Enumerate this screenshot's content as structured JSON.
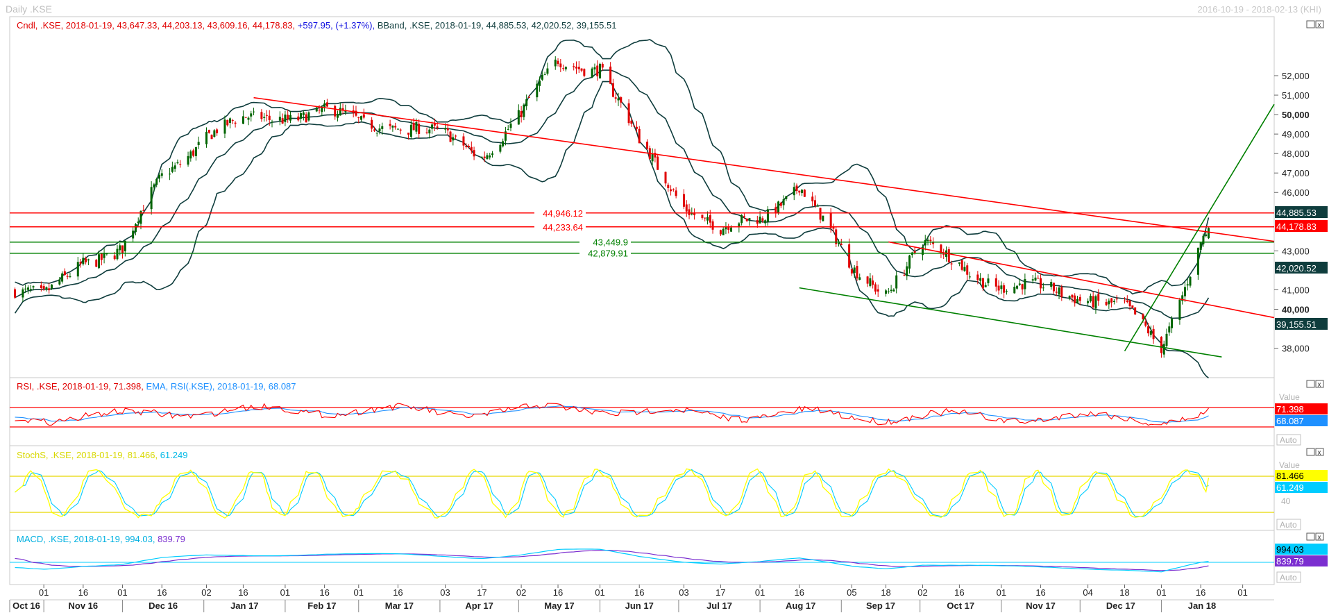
{
  "window": {
    "title": "Daily .KSE",
    "date_range": "2016-10-19 - 2018-02-13 (KHI)"
  },
  "colors": {
    "candle_up": "#006400",
    "candle_down": "#e00000",
    "bband": "#0f3d3d",
    "rsi": "#ff0000",
    "ema": "#1e90ff",
    "stoch_k": "#ffff00",
    "stoch_d": "#00ccff",
    "macd": "#00ccff",
    "signal": "#7b2fd0",
    "support": "#008000",
    "resistance": "#ff0000"
  },
  "legend": {
    "main_prefix": "Cndl, .KSE, 2018-01-19, 43,647.33, 44,203.13, 43,609.16, 44,178.83, ",
    "main_change": "+597.95, (+1.37%), ",
    "main_bband": "BBand, .KSE, 2018-01-19, 44,885.53, 42,020.52, 39,155.51",
    "rsi": "RSI, .KSE, 2018-01-19, 71.398, ",
    "rsi_ema": "EMA, RSI(.KSE), 2018-01-19, 68.087",
    "stoch_k": "StochS, .KSE, 2018-01-19, 81.466, ",
    "stoch_d": "61.249",
    "macd": "MACD, .KSE, 2018-01-19, 994.03, ",
    "macd_signal": "839.79"
  },
  "price_axis": {
    "ticks": [
      "52,000",
      "51,000",
      "50,000",
      "49,000",
      "48,000",
      "47,000",
      "46,000",
      "43,000",
      "41,000",
      "40,000",
      "38,000"
    ]
  },
  "value_tags": {
    "bb_upper": "44,885.53",
    "last": "44,178.83",
    "bb_mid": "42,020.52",
    "bb_lower": "39,155.51"
  },
  "levels": [
    {
      "label": "44,946.12",
      "value": 44946.12,
      "color": "red"
    },
    {
      "label": "44,233.64",
      "value": 44233.64,
      "color": "red"
    },
    {
      "label": "43,449.9",
      "value": 43449.9,
      "color": "green"
    },
    {
      "label": "42,879.91",
      "value": 42879.91,
      "color": "green"
    }
  ],
  "rsi_panel": {
    "value_header": "Value",
    "rsi_tag": "71.398",
    "ema_tag": "68.087",
    "auto": "Auto"
  },
  "stoch_panel": {
    "value_header": "Value",
    "k_tag": "81.466",
    "d_tag": "61.249",
    "forty": "40",
    "auto": "Auto"
  },
  "macd_panel": {
    "macd_tag": "994.03",
    "signal_tag": "839.79",
    "auto": "Auto"
  },
  "x_axis": {
    "days": [
      "01",
      "16",
      "01",
      "16",
      "02",
      "16",
      "01",
      "16",
      "01",
      "16",
      "03",
      "17",
      "02",
      "16",
      "01",
      "16",
      "03",
      "17",
      "01",
      "16",
      "05",
      "18",
      "02",
      "16",
      "01",
      "16",
      "04",
      "18",
      "01",
      "16",
      "01"
    ],
    "months": [
      "Oct 16",
      "Nov 16",
      "Dec 16",
      "Jan 17",
      "Feb 17",
      "Mar 17",
      "Apr 17",
      "May 17",
      "Jun 17",
      "Jul 17",
      "Aug 17",
      "Sep 17",
      "Oct 17",
      "Nov 17",
      "Dec 17",
      "Jan 18"
    ]
  },
  "chart_data": {
    "type": "candlestick",
    "instrument": ".KSE",
    "date_range": [
      "2016-10-19",
      "2018-02-13"
    ],
    "last_bar": {
      "date": "2018-01-19",
      "open": 43647.33,
      "high": 44203.13,
      "low": 43609.16,
      "close": 44178.83,
      "change": 597.95,
      "change_pct": 1.37
    },
    "bollinger": {
      "upper": 44885.53,
      "middle": 42020.52,
      "lower": 39155.51
    },
    "close_path": {
      "dates": [
        "2016-10-19",
        "2016-11-01",
        "2016-11-16",
        "2016-12-01",
        "2016-12-16",
        "2017-01-02",
        "2017-01-16",
        "2017-02-01",
        "2017-02-16",
        "2017-03-01",
        "2017-03-16",
        "2017-04-03",
        "2017-04-17",
        "2017-05-02",
        "2017-05-16",
        "2017-06-01",
        "2017-06-16",
        "2017-07-03",
        "2017-07-17",
        "2017-08-01",
        "2017-08-16",
        "2017-09-05",
        "2017-09-18",
        "2017-10-02",
        "2017-10-16",
        "2017-11-01",
        "2017-11-16",
        "2017-12-04",
        "2017-12-18",
        "2018-01-01",
        "2018-01-16",
        "2018-01-19"
      ],
      "close": [
        41000,
        40500,
        42600,
        43000,
        46800,
        49000,
        49600,
        50000,
        50100,
        49600,
        49500,
        48800,
        48000,
        50000,
        52700,
        52500,
        48500,
        45500,
        44000,
        44600,
        46500,
        42000,
        41000,
        43300,
        42300,
        41200,
        41000,
        40700,
        40000,
        38000,
        43600,
        44178.83
      ]
    },
    "indicators": {
      "rsi": {
        "value": 71.398,
        "ema": 68.087,
        "levels": [
          70,
          30
        ]
      },
      "stochastic": {
        "k": 81.466,
        "d": 61.249,
        "levels": [
          80,
          20
        ]
      },
      "macd": {
        "macd": 994.03,
        "signal": 839.79
      }
    },
    "price_ticks": [
      52000,
      51000,
      50000,
      49000,
      48000,
      47000,
      46000,
      43000,
      41000,
      40000,
      38000
    ]
  }
}
